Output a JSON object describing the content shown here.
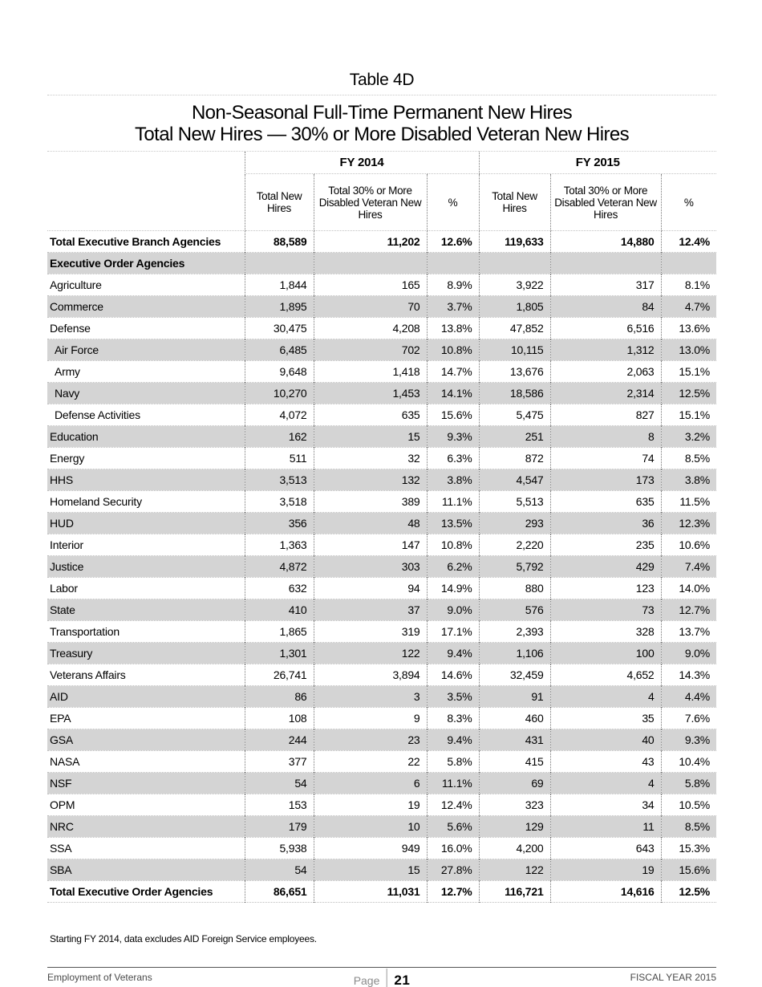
{
  "page": {
    "title": "Table 4D",
    "subtitle_line1": "Non-Seasonal Full-Time Permanent New Hires",
    "subtitle_line2": "Total New Hires — 30% or More Disabled Veteran New Hires"
  },
  "table": {
    "year_headers": [
      "FY 2014",
      "FY 2015"
    ],
    "column_headers": [
      "Total New Hires",
      "Total 30% or More Disabled Veteran New Hires",
      "%",
      "Total New Hires",
      "Total 30% or More Disabled Veteran New Hires",
      "%"
    ],
    "rows": [
      {
        "label": "Total Executive Branch Agencies",
        "style": "total",
        "indent": false,
        "values": [
          "88,589",
          "11,202",
          "12.6%",
          "119,633",
          "14,880",
          "12.4%"
        ]
      },
      {
        "label": "Executive Order Agencies",
        "style": "section",
        "indent": false,
        "values": [
          "",
          "",
          "",
          "",
          "",
          ""
        ]
      },
      {
        "label": "Agriculture",
        "style": "normal",
        "indent": false,
        "values": [
          "1,844",
          "165",
          "8.9%",
          "3,922",
          "317",
          "8.1%"
        ]
      },
      {
        "label": "Commerce",
        "style": "normal",
        "indent": false,
        "values": [
          "1,895",
          "70",
          "3.7%",
          "1,805",
          "84",
          "4.7%"
        ]
      },
      {
        "label": "Defense",
        "style": "normal",
        "indent": false,
        "values": [
          "30,475",
          "4,208",
          "13.8%",
          "47,852",
          "6,516",
          "13.6%"
        ]
      },
      {
        "label": "Air Force",
        "style": "normal",
        "indent": true,
        "values": [
          "6,485",
          "702",
          "10.8%",
          "10,115",
          "1,312",
          "13.0%"
        ]
      },
      {
        "label": "Army",
        "style": "normal",
        "indent": true,
        "values": [
          "9,648",
          "1,418",
          "14.7%",
          "13,676",
          "2,063",
          "15.1%"
        ]
      },
      {
        "label": "Navy",
        "style": "normal",
        "indent": true,
        "values": [
          "10,270",
          "1,453",
          "14.1%",
          "18,586",
          "2,314",
          "12.5%"
        ]
      },
      {
        "label": "Defense Activities",
        "style": "normal",
        "indent": true,
        "values": [
          "4,072",
          "635",
          "15.6%",
          "5,475",
          "827",
          "15.1%"
        ]
      },
      {
        "label": "Education",
        "style": "normal",
        "indent": false,
        "values": [
          "162",
          "15",
          "9.3%",
          "251",
          "8",
          "3.2%"
        ]
      },
      {
        "label": "Energy",
        "style": "normal",
        "indent": false,
        "values": [
          "511",
          "32",
          "6.3%",
          "872",
          "74",
          "8.5%"
        ]
      },
      {
        "label": "HHS",
        "style": "normal",
        "indent": false,
        "values": [
          "3,513",
          "132",
          "3.8%",
          "4,547",
          "173",
          "3.8%"
        ]
      },
      {
        "label": "Homeland Security",
        "style": "normal",
        "indent": false,
        "values": [
          "3,518",
          "389",
          "11.1%",
          "5,513",
          "635",
          "11.5%"
        ]
      },
      {
        "label": "HUD",
        "style": "normal",
        "indent": false,
        "values": [
          "356",
          "48",
          "13.5%",
          "293",
          "36",
          "12.3%"
        ]
      },
      {
        "label": "Interior",
        "style": "normal",
        "indent": false,
        "values": [
          "1,363",
          "147",
          "10.8%",
          "2,220",
          "235",
          "10.6%"
        ]
      },
      {
        "label": "Justice",
        "style": "normal",
        "indent": false,
        "values": [
          "4,872",
          "303",
          "6.2%",
          "5,792",
          "429",
          "7.4%"
        ]
      },
      {
        "label": "Labor",
        "style": "normal",
        "indent": false,
        "values": [
          "632",
          "94",
          "14.9%",
          "880",
          "123",
          "14.0%"
        ]
      },
      {
        "label": "State",
        "style": "normal",
        "indent": false,
        "values": [
          "410",
          "37",
          "9.0%",
          "576",
          "73",
          "12.7%"
        ]
      },
      {
        "label": "Transportation",
        "style": "normal",
        "indent": false,
        "values": [
          "1,865",
          "319",
          "17.1%",
          "2,393",
          "328",
          "13.7%"
        ]
      },
      {
        "label": "Treasury",
        "style": "normal",
        "indent": false,
        "values": [
          "1,301",
          "122",
          "9.4%",
          "1,106",
          "100",
          "9.0%"
        ]
      },
      {
        "label": "Veterans Affairs",
        "style": "normal",
        "indent": false,
        "values": [
          "26,741",
          "3,894",
          "14.6%",
          "32,459",
          "4,652",
          "14.3%"
        ]
      },
      {
        "label": "AID",
        "style": "normal",
        "indent": false,
        "values": [
          "86",
          "3",
          "3.5%",
          "91",
          "4",
          "4.4%"
        ]
      },
      {
        "label": "EPA",
        "style": "normal",
        "indent": false,
        "values": [
          "108",
          "9",
          "8.3%",
          "460",
          "35",
          "7.6%"
        ]
      },
      {
        "label": "GSA",
        "style": "normal",
        "indent": false,
        "values": [
          "244",
          "23",
          "9.4%",
          "431",
          "40",
          "9.3%"
        ]
      },
      {
        "label": "NASA",
        "style": "normal",
        "indent": false,
        "values": [
          "377",
          "22",
          "5.8%",
          "415",
          "43",
          "10.4%"
        ]
      },
      {
        "label": "NSF",
        "style": "normal",
        "indent": false,
        "values": [
          "54",
          "6",
          "11.1%",
          "69",
          "4",
          "5.8%"
        ]
      },
      {
        "label": "OPM",
        "style": "normal",
        "indent": false,
        "values": [
          "153",
          "19",
          "12.4%",
          "323",
          "34",
          "10.5%"
        ]
      },
      {
        "label": "NRC",
        "style": "normal",
        "indent": false,
        "values": [
          "179",
          "10",
          "5.6%",
          "129",
          "11",
          "8.5%"
        ]
      },
      {
        "label": "SSA",
        "style": "normal",
        "indent": false,
        "values": [
          "5,938",
          "949",
          "16.0%",
          "4,200",
          "643",
          "15.3%"
        ]
      },
      {
        "label": "SBA",
        "style": "normal",
        "indent": false,
        "values": [
          "54",
          "15",
          "27.8%",
          "122",
          "19",
          "15.6%"
        ]
      },
      {
        "label": "Total Executive Order Agencies",
        "style": "total",
        "indent": false,
        "values": [
          "86,651",
          "11,031",
          "12.7%",
          "116,721",
          "14,616",
          "12.5%"
        ]
      }
    ]
  },
  "footnote": "Starting FY 2014, data excludes AID Foreign Service employees.",
  "footer": {
    "left": "Employment of Veterans",
    "page_label": "Page",
    "page_number": "21",
    "right": "FISCAL YEAR 2015"
  },
  "colors": {
    "stripe_gray": "#d4d4d4",
    "rule_gray": "#555555",
    "dotted_dark": "#777777",
    "dotted_light": "#c2c2c2"
  }
}
